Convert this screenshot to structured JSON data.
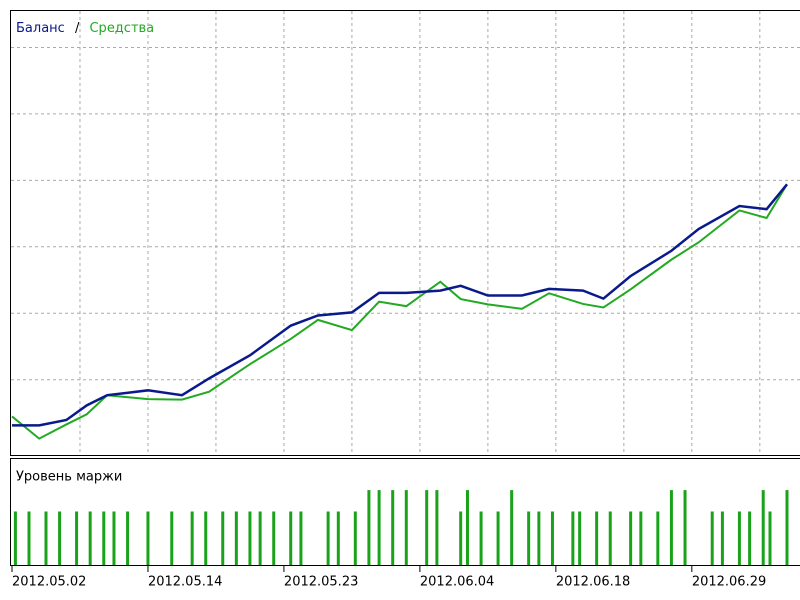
{
  "chart_data": [
    {
      "type": "line",
      "legend_separator": "/",
      "x": [
        0,
        4,
        8,
        11,
        14,
        20,
        25,
        29,
        35,
        41,
        45,
        50,
        54,
        58,
        63,
        66,
        70,
        75,
        79,
        84,
        87,
        91,
        97,
        101,
        107,
        111,
        114
      ],
      "series": [
        {
          "name": "Баланс",
          "color": "#0a1a8c",
          "values": [
            6.7,
            6.7,
            7.9,
            11.2,
            13.5,
            14.6,
            13.5,
            17.3,
            22.5,
            29.2,
            31.5,
            32.2,
            36.6,
            36.6,
            37.1,
            38.2,
            36.0,
            36.0,
            37.5,
            37.1,
            35.3,
            40.4,
            46.1,
            51.0,
            56.2,
            55.5,
            61.1
          ]
        },
        {
          "name": "Средства",
          "color": "#22aa22",
          "values": [
            8.7,
            3.7,
            6.9,
            9.2,
            13.5,
            12.6,
            12.5,
            14.3,
            20.5,
            26.2,
            30.5,
            28.2,
            34.6,
            33.6,
            39.1,
            35.2,
            34.0,
            33.0,
            36.5,
            34.1,
            33.3,
            37.4,
            44.1,
            48.0,
            55.2,
            53.5,
            61.1
          ]
        }
      ],
      "xlim": [
        0,
        114
      ],
      "xticks": [
        10,
        20,
        30,
        40,
        50,
        60,
        70,
        80,
        90,
        100,
        110
      ],
      "ylim": [
        0,
        100
      ],
      "yticks": [
        17,
        32,
        47,
        62,
        77,
        92
      ],
      "grid": true
    },
    {
      "type": "bar",
      "title": "Уровень маржи",
      "color": "#1aa31a",
      "x": [
        0.5,
        2.5,
        5,
        7,
        9.5,
        11.5,
        13.5,
        15,
        17,
        20,
        23.5,
        26.5,
        28.5,
        31,
        33,
        35,
        36.5,
        38.5,
        41,
        42.5,
        46.5,
        48,
        50.5,
        52.5,
        54,
        56,
        58,
        61,
        62.5,
        66,
        67,
        69,
        71.5,
        73.5,
        76,
        77.5,
        79.5,
        82.5,
        83.5,
        86,
        88,
        91,
        92.5,
        95,
        97,
        99,
        103,
        104.5,
        107,
        108.5,
        110.5,
        111.5,
        114
      ],
      "values": [
        50,
        50,
        50,
        50,
        50,
        50,
        50,
        50,
        50,
        50,
        50,
        50,
        50,
        50,
        50,
        50,
        50,
        50,
        50,
        50,
        50,
        50,
        50,
        70,
        70,
        70,
        70,
        70,
        70,
        50,
        70,
        50,
        50,
        70,
        50,
        50,
        50,
        50,
        50,
        50,
        50,
        50,
        50,
        50,
        70,
        70,
        50,
        50,
        50,
        50,
        70,
        50,
        70
      ],
      "xlim": [
        0,
        114
      ],
      "xticks": [
        {
          "value": 0,
          "label": "2012.05.02"
        },
        {
          "value": 20,
          "label": "2012.05.14"
        },
        {
          "value": 40,
          "label": "2012.05.23"
        },
        {
          "value": 60,
          "label": "2012.06.04"
        },
        {
          "value": 80,
          "label": "2012.06.18"
        },
        {
          "value": 100,
          "label": "2012.06.29"
        }
      ],
      "ylim": [
        0,
        100
      ]
    }
  ]
}
